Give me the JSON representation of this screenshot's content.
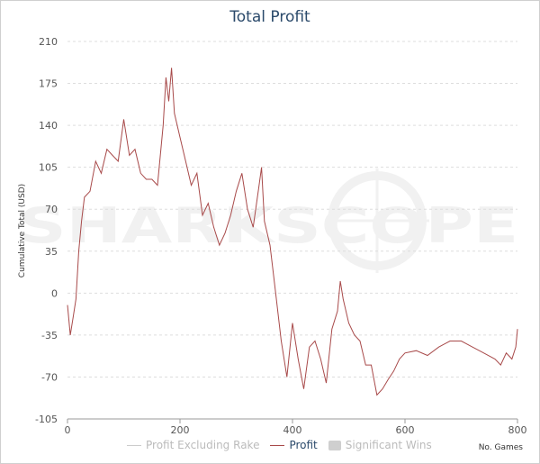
{
  "chart_data": {
    "type": "line",
    "title": "Total Profit",
    "ylabel": "Cumulative Total (USD)",
    "xlabel": "No. Games",
    "xlim": [
      0,
      800
    ],
    "ylim": [
      -105,
      210
    ],
    "x_ticks": [
      "0",
      "200",
      "400",
      "600",
      "800"
    ],
    "y_ticks": [
      "210",
      "175",
      "140",
      "105",
      "70",
      "35",
      "0",
      "-35",
      "-70",
      "-105"
    ],
    "grid": true,
    "legend_position": "bottom",
    "watermark": "SHARKSCOPE",
    "series": [
      {
        "name": "Profit",
        "color": "#a84a4a",
        "x": [
          0,
          5,
          10,
          15,
          20,
          25,
          30,
          40,
          50,
          60,
          70,
          80,
          90,
          100,
          110,
          120,
          130,
          140,
          150,
          160,
          170,
          175,
          180,
          185,
          190,
          200,
          210,
          220,
          230,
          240,
          250,
          260,
          270,
          280,
          290,
          300,
          310,
          320,
          330,
          340,
          345,
          350,
          360,
          370,
          380,
          390,
          400,
          410,
          420,
          430,
          440,
          450,
          460,
          470,
          480,
          485,
          490,
          500,
          510,
          520,
          530,
          540,
          550,
          560,
          570,
          580,
          590,
          600,
          620,
          640,
          660,
          680,
          700,
          720,
          740,
          760,
          770,
          780,
          790,
          797,
          800
        ],
        "y": [
          -10,
          -35,
          -20,
          -5,
          35,
          60,
          80,
          85,
          110,
          100,
          120,
          115,
          110,
          145,
          115,
          120,
          100,
          95,
          95,
          90,
          140,
          180,
          160,
          188,
          150,
          130,
          110,
          90,
          100,
          65,
          75,
          55,
          40,
          50,
          65,
          85,
          100,
          70,
          55,
          88,
          105,
          60,
          40,
          0,
          -40,
          -70,
          -25,
          -55,
          -80,
          -45,
          -40,
          -55,
          -75,
          -30,
          -15,
          10,
          -5,
          -25,
          -35,
          -40,
          -60,
          -60,
          -85,
          -80,
          -72,
          -65,
          -55,
          -50,
          -48,
          -52,
          -45,
          -40,
          -40,
          -45,
          -50,
          -55,
          -60,
          -50,
          -55,
          -45,
          -30
        ]
      }
    ]
  },
  "legend": {
    "item1": "Profit Excluding Rake",
    "item2": "Profit",
    "item3": "Significant Wins"
  }
}
